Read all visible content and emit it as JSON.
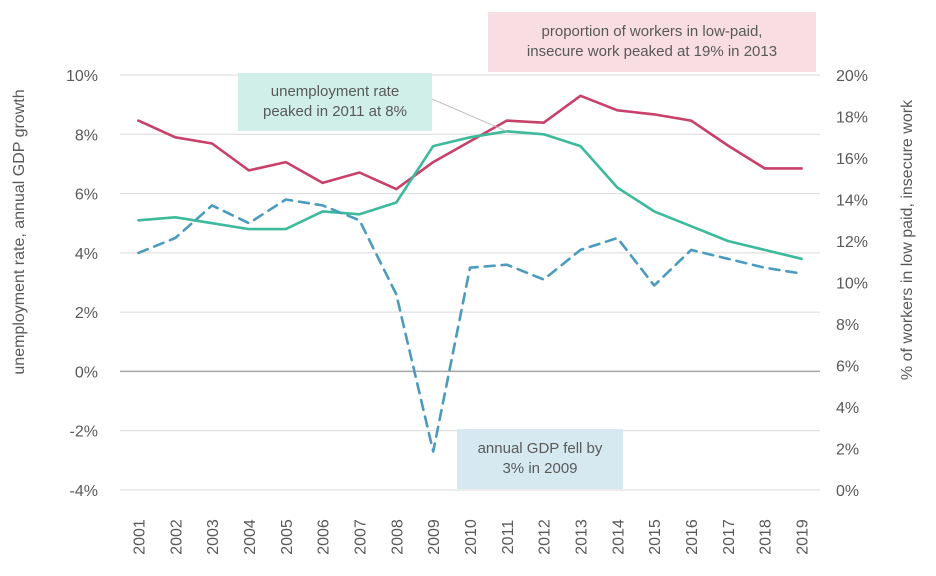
{
  "chart_data": {
    "type": "line",
    "title": "",
    "x": [
      "2001",
      "2002",
      "2003",
      "2004",
      "2005",
      "2006",
      "2007",
      "2008",
      "2009",
      "2010",
      "2011",
      "2012",
      "2013",
      "2014",
      "2015",
      "2016",
      "2017",
      "2018",
      "2019"
    ],
    "y_left": {
      "label": "unemployment  rate, annual GDP growth",
      "min": -4,
      "max": 10,
      "step": 2,
      "unit": "%"
    },
    "y_right": {
      "label": "% of workers in low paid, insecure work",
      "min": 0,
      "max": 20,
      "step": 2,
      "unit": "%"
    },
    "series": [
      {
        "key": "low_paid",
        "axis": "right",
        "color": "#c8416a",
        "dash": false,
        "values": [
          17.8,
          17.0,
          16.7,
          15.4,
          15.8,
          14.8,
          15.3,
          14.5,
          15.8,
          16.8,
          17.8,
          17.7,
          19.0,
          18.3,
          18.1,
          17.8,
          16.6,
          15.5,
          15.5
        ]
      },
      {
        "key": "unemployment",
        "axis": "left",
        "color": "#3dba9c",
        "dash": false,
        "values": [
          5.1,
          5.2,
          5.0,
          4.8,
          4.8,
          5.4,
          5.3,
          5.7,
          7.6,
          7.9,
          8.1,
          8.0,
          7.6,
          6.2,
          5.4,
          4.9,
          4.4,
          4.1,
          3.8
        ]
      },
      {
        "key": "gdp_growth",
        "axis": "left",
        "color": "#4a9bbd",
        "dash": true,
        "values": [
          4.0,
          4.5,
          5.6,
          5.0,
          5.8,
          5.6,
          5.1,
          2.6,
          -2.7,
          3.5,
          3.6,
          3.1,
          4.1,
          4.5,
          2.9,
          4.1,
          3.8,
          3.5,
          3.3
        ]
      }
    ],
    "annotations": {
      "low_paid": [
        "proportion of workers in low-paid,",
        "insecure work peaked at 19% in 2013"
      ],
      "unemployment": [
        "unemployment rate",
        "peaked in 2011 at  8%"
      ],
      "gdp": [
        "annual  GDP fell by",
        "3% in 2009"
      ]
    },
    "grid": true,
    "legend": "none",
    "colors": {
      "grid": "#d9d9d9",
      "zero_line": "#a6a6a6",
      "text": "#595959",
      "connector": "#bfbfbf"
    }
  }
}
